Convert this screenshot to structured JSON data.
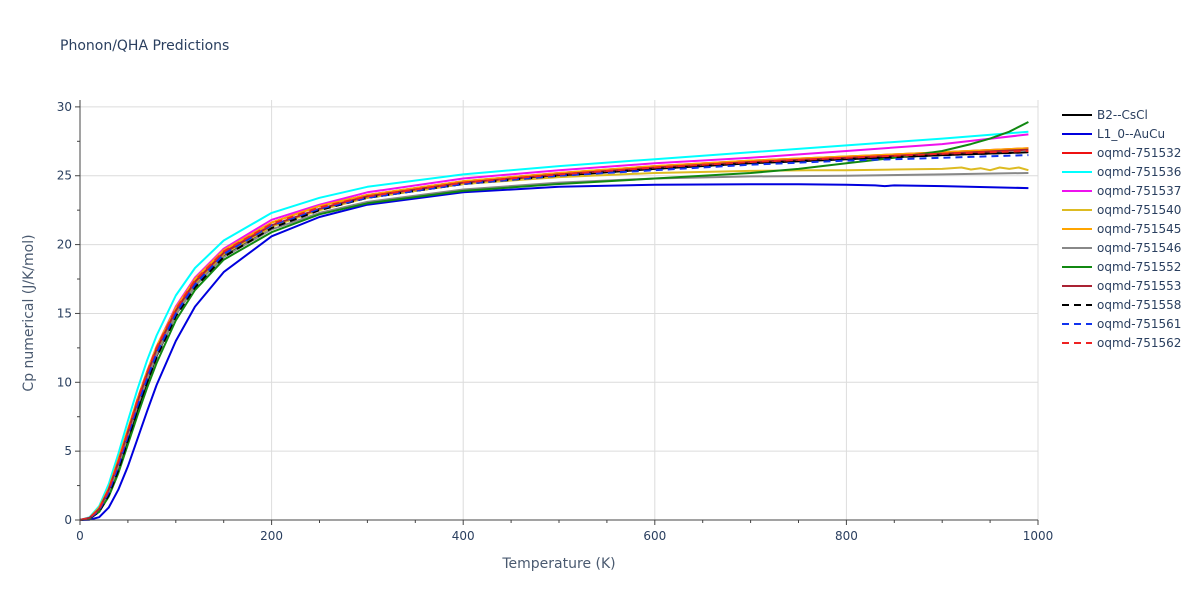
{
  "chart_data": {
    "type": "line",
    "title": "Phonon/QHA Predictions",
    "xlabel": "Temperature (K)",
    "ylabel": "Cp numerical (J/K/mol)",
    "xlim": [
      0,
      1000
    ],
    "ylim": [
      0,
      30.5
    ],
    "xticks": [
      0,
      200,
      400,
      600,
      800,
      1000
    ],
    "yticks": [
      0,
      5,
      10,
      15,
      20,
      25,
      30
    ],
    "grid": true,
    "legend_position": "right",
    "series": [
      {
        "name": "B2--CsCl",
        "color": "#000000",
        "dash": "solid",
        "x": [
          0,
          10,
          20,
          30,
          40,
          50,
          60,
          70,
          80,
          100,
          120,
          150,
          200,
          250,
          300,
          400,
          500,
          600,
          700,
          800,
          900,
          990
        ],
        "y": [
          0,
          0.1,
          0.6,
          1.8,
          3.6,
          5.8,
          8.0,
          10.0,
          11.9,
          14.9,
          17.0,
          19.2,
          21.3,
          22.6,
          23.4,
          24.4,
          25.0,
          25.5,
          25.9,
          26.2,
          26.5,
          26.7
        ]
      },
      {
        "name": "L1_0--AuCu",
        "color": "#0000dd",
        "dash": "solid",
        "x": [
          0,
          10,
          20,
          30,
          40,
          50,
          60,
          70,
          80,
          100,
          120,
          150,
          200,
          250,
          300,
          400,
          500,
          600,
          700,
          750,
          800,
          830,
          840,
          850,
          900,
          990
        ],
        "y": [
          0,
          0.02,
          0.2,
          0.9,
          2.2,
          3.9,
          5.9,
          7.9,
          9.8,
          13.0,
          15.5,
          18.0,
          20.6,
          22.0,
          22.9,
          23.8,
          24.2,
          24.35,
          24.38,
          24.38,
          24.35,
          24.3,
          24.25,
          24.3,
          24.25,
          24.1
        ]
      },
      {
        "name": "oqmd-751532",
        "color": "#ee1111",
        "dash": "solid",
        "x": [
          0,
          10,
          20,
          30,
          40,
          50,
          60,
          70,
          80,
          100,
          120,
          150,
          200,
          250,
          300,
          400,
          500,
          600,
          700,
          800,
          900,
          990
        ],
        "y": [
          0,
          0.15,
          0.8,
          2.2,
          4.2,
          6.4,
          8.6,
          10.6,
          12.4,
          15.3,
          17.4,
          19.5,
          21.6,
          22.8,
          23.6,
          24.6,
          25.2,
          25.7,
          26.1,
          26.4,
          26.7,
          27.0
        ]
      },
      {
        "name": "oqmd-751536",
        "color": "#00ffff",
        "dash": "solid",
        "x": [
          0,
          10,
          20,
          30,
          40,
          50,
          60,
          70,
          80,
          100,
          120,
          150,
          200,
          250,
          300,
          400,
          500,
          600,
          700,
          800,
          900,
          990
        ],
        "y": [
          0,
          0.2,
          1.0,
          2.6,
          4.8,
          7.2,
          9.5,
          11.6,
          13.4,
          16.3,
          18.3,
          20.3,
          22.3,
          23.4,
          24.2,
          25.1,
          25.7,
          26.2,
          26.7,
          27.2,
          27.7,
          28.2
        ]
      },
      {
        "name": "oqmd-751537",
        "color": "#ee11ee",
        "dash": "solid",
        "x": [
          0,
          10,
          20,
          30,
          40,
          50,
          60,
          70,
          80,
          100,
          120,
          150,
          200,
          250,
          300,
          400,
          500,
          600,
          700,
          800,
          900,
          990
        ],
        "y": [
          0,
          0.15,
          0.8,
          2.2,
          4.2,
          6.5,
          8.8,
          10.8,
          12.6,
          15.5,
          17.6,
          19.7,
          21.8,
          22.9,
          23.8,
          24.8,
          25.4,
          25.9,
          26.3,
          26.8,
          27.3,
          28.0
        ]
      },
      {
        "name": "oqmd-751540",
        "color": "#ddbb22",
        "dash": "solid",
        "x": [
          0,
          10,
          20,
          30,
          40,
          50,
          60,
          70,
          80,
          100,
          120,
          150,
          200,
          250,
          300,
          400,
          500,
          600,
          700,
          760,
          800,
          850,
          900,
          920,
          930,
          940,
          950,
          960,
          970,
          980,
          990
        ],
        "y": [
          0,
          0.15,
          0.8,
          2.1,
          4.1,
          6.3,
          8.5,
          10.5,
          12.3,
          15.1,
          17.2,
          19.3,
          21.3,
          22.5,
          23.4,
          24.4,
          24.9,
          25.2,
          25.35,
          25.4,
          25.4,
          25.45,
          25.5,
          25.6,
          25.45,
          25.55,
          25.4,
          25.6,
          25.5,
          25.6,
          25.4
        ]
      },
      {
        "name": "oqmd-751545",
        "color": "#ffa500",
        "dash": "solid",
        "x": [
          0,
          10,
          20,
          30,
          40,
          50,
          60,
          70,
          80,
          100,
          120,
          150,
          200,
          250,
          300,
          400,
          500,
          600,
          700,
          800,
          900,
          990
        ],
        "y": [
          0,
          0.15,
          0.9,
          2.3,
          4.4,
          6.6,
          8.8,
          10.8,
          12.6,
          15.4,
          17.5,
          19.6,
          21.6,
          22.8,
          23.6,
          24.6,
          25.2,
          25.7,
          26.1,
          26.4,
          26.7,
          27.0
        ]
      },
      {
        "name": "oqmd-751546",
        "color": "#888888",
        "dash": "solid",
        "x": [
          0,
          10,
          20,
          30,
          40,
          50,
          60,
          70,
          80,
          100,
          120,
          150,
          200,
          250,
          300,
          400,
          500,
          600,
          700,
          800,
          900,
          990
        ],
        "y": [
          0,
          0.12,
          0.7,
          2.0,
          3.9,
          6.1,
          8.3,
          10.2,
          12.0,
          14.9,
          17.0,
          19.1,
          21.1,
          22.3,
          23.1,
          24.0,
          24.5,
          24.8,
          24.95,
          25.0,
          25.1,
          25.2
        ]
      },
      {
        "name": "oqmd-751552",
        "color": "#118811",
        "dash": "solid",
        "x": [
          0,
          10,
          20,
          30,
          40,
          50,
          60,
          70,
          80,
          100,
          120,
          150,
          200,
          250,
          300,
          400,
          500,
          600,
          700,
          750,
          800,
          850,
          900,
          930,
          950,
          970,
          990
        ],
        "y": [
          0,
          0.1,
          0.6,
          1.7,
          3.4,
          5.5,
          7.6,
          9.6,
          11.4,
          14.5,
          16.7,
          18.9,
          20.9,
          22.2,
          23.0,
          23.9,
          24.4,
          24.8,
          25.2,
          25.5,
          25.9,
          26.3,
          26.8,
          27.3,
          27.7,
          28.2,
          28.9
        ]
      },
      {
        "name": "oqmd-751553",
        "color": "#aa2233",
        "dash": "solid",
        "x": [
          0,
          10,
          20,
          30,
          40,
          50,
          60,
          70,
          80,
          100,
          120,
          150,
          200,
          250,
          300,
          400,
          500,
          600,
          700,
          800,
          900,
          990
        ],
        "y": [
          0,
          0.15,
          0.8,
          2.2,
          4.2,
          6.4,
          8.6,
          10.6,
          12.4,
          15.2,
          17.3,
          19.4,
          21.4,
          22.6,
          23.5,
          24.5,
          25.1,
          25.6,
          26.0,
          26.3,
          26.6,
          26.9
        ]
      },
      {
        "name": "oqmd-751558",
        "color": "#000000",
        "dash": "dash",
        "x": [
          0,
          10,
          20,
          30,
          40,
          50,
          60,
          70,
          80,
          100,
          120,
          150,
          200,
          250,
          300,
          400,
          500,
          600,
          700,
          800,
          900,
          990
        ],
        "y": [
          0,
          0.1,
          0.6,
          1.8,
          3.6,
          5.8,
          8.0,
          10.0,
          11.8,
          14.8,
          16.9,
          19.1,
          21.2,
          22.5,
          23.4,
          24.4,
          25.0,
          25.5,
          25.9,
          26.2,
          26.5,
          26.7
        ]
      },
      {
        "name": "oqmd-751561",
        "color": "#1133ee",
        "dash": "dash",
        "x": [
          0,
          10,
          20,
          30,
          40,
          50,
          60,
          70,
          80,
          100,
          120,
          150,
          200,
          250,
          300,
          400,
          500,
          600,
          700,
          800,
          900,
          990
        ],
        "y": [
          0,
          0.12,
          0.7,
          2.0,
          3.9,
          6.1,
          8.3,
          10.3,
          12.1,
          15.0,
          17.1,
          19.3,
          21.4,
          22.6,
          23.4,
          24.4,
          25.0,
          25.4,
          25.8,
          26.1,
          26.3,
          26.5
        ]
      },
      {
        "name": "oqmd-751562",
        "color": "#ee2222",
        "dash": "dash",
        "x": [
          0,
          10,
          20,
          30,
          40,
          50,
          60,
          70,
          80,
          100,
          120,
          150,
          200,
          250,
          300,
          400,
          500,
          600,
          700,
          800,
          900,
          990
        ],
        "y": [
          0,
          0.15,
          0.8,
          2.2,
          4.2,
          6.4,
          8.7,
          10.7,
          12.5,
          15.3,
          17.4,
          19.5,
          21.5,
          22.7,
          23.5,
          24.5,
          25.1,
          25.6,
          26.0,
          26.3,
          26.6,
          26.8
        ]
      }
    ]
  }
}
